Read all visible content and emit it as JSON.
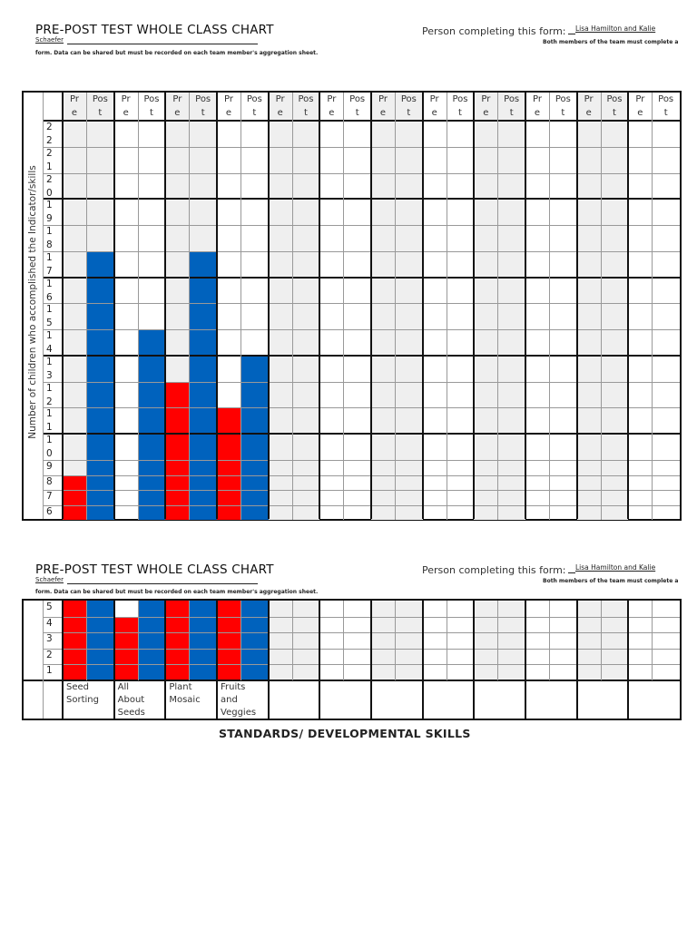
{
  "header": {
    "title": "PRE-POST TEST WHOLE CLASS CHART",
    "name_continuation": "Schaefer",
    "notice": "form.  Data can be shared but must be recorded on each team member's aggregation sheet.",
    "person_label": "Person completing this form:",
    "person_value": "Lisa Hamilton and Kalie",
    "both_note": "Both members of the team must complete a"
  },
  "footer": {
    "label": "STANDARDS/ DEVELOPMENTAL SKILLS"
  },
  "colors": {
    "pre": "#ff0000",
    "post": "#0062bd",
    "shade": "#efefef",
    "border": "#111111"
  },
  "columns": {
    "pre_label_a": "Pr",
    "pre_label_b": "e",
    "post_label_a": "Pos",
    "post_label_b": "t",
    "group_count": 12
  },
  "chart_data": {
    "type": "bar",
    "title": "PRE-POST TEST WHOLE CLASS CHART",
    "xlabel": "STANDARDS/ DEVELOPMENTAL SKILLS",
    "ylabel": "Number of children who accomplished the Indicator/skills",
    "ylim": [
      0,
      22
    ],
    "yticks": [
      1,
      2,
      3,
      4,
      5,
      6,
      7,
      8,
      9,
      10,
      11,
      12,
      13,
      14,
      15,
      16,
      17,
      18,
      19,
      20,
      21,
      22
    ],
    "grid": true,
    "legend": [],
    "categories": [
      "Seed Sorting",
      "All About Seeds",
      "Plant Mosaic",
      "Fruits and Veggies",
      "",
      "",
      "",
      "",
      "",
      "",
      "",
      ""
    ],
    "series": [
      {
        "name": "Pre",
        "color": "#ff0000",
        "values": [
          8,
          4,
          12,
          11,
          null,
          null,
          null,
          null,
          null,
          null,
          null,
          null
        ]
      },
      {
        "name": "Post",
        "color": "#0062bd",
        "values": [
          17,
          14,
          17,
          13,
          null,
          null,
          null,
          null,
          null,
          null,
          null,
          null
        ]
      }
    ],
    "panels": [
      {
        "name": "top",
        "y_range": [
          6,
          22
        ]
      },
      {
        "name": "bottom",
        "y_range": [
          1,
          5
        ]
      }
    ]
  },
  "categories_display": [
    "Seed\nSorting",
    "All\nAbout\nSeeds",
    "Plant\nMosaic",
    " Fruits\nand\nVeggies"
  ]
}
